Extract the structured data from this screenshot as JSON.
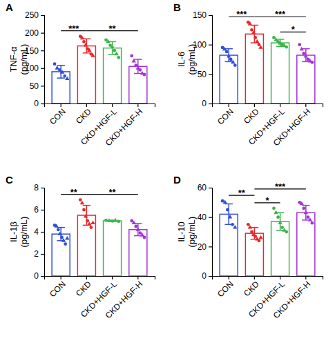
{
  "chart_data": [
    {
      "type": "bar",
      "title": "A",
      "y_label": [
        "TNF-α",
        "(pg/mL)"
      ],
      "categories": [
        "CON",
        "CKD",
        "CKD+HGF-L",
        "CKD+HGF-H"
      ],
      "values": [
        90,
        163,
        157,
        105
      ],
      "errors": [
        18,
        20,
        18,
        20
      ],
      "points": [
        [
          112,
          100,
          95,
          88,
          78,
          70
        ],
        [
          190,
          185,
          175,
          165,
          155,
          150,
          140,
          135
        ],
        [
          180,
          175,
          165,
          160,
          150,
          140,
          130
        ],
        [
          135,
          120,
          108,
          100,
          95,
          85,
          82
        ]
      ],
      "colors": [
        "#2f4fd6",
        "#e8262b",
        "#3cb44b",
        "#a335d6"
      ],
      "ylim": [
        0,
        250
      ],
      "yticks": [
        0,
        50,
        100,
        150,
        200,
        250
      ],
      "significance": [
        {
          "groups": [
            "CON",
            "CKD"
          ],
          "label": "***"
        },
        {
          "groups": [
            "CKD",
            "CKD+HGF-H"
          ],
          "label": "**"
        }
      ]
    },
    {
      "type": "bar",
      "title": "B",
      "y_label": [
        "IL-6",
        "(pg/mL)"
      ],
      "categories": [
        "CON",
        "CKD",
        "CKD+HGF-L",
        "CKD+HGF-H"
      ],
      "values": [
        82,
        118,
        103,
        82
      ],
      "errors": [
        11,
        15,
        6,
        11
      ],
      "points": [
        [
          95,
          92,
          88,
          80,
          75,
          70,
          65
        ],
        [
          138,
          135,
          125,
          120,
          112,
          105,
          100,
          95
        ],
        [
          112,
          108,
          105,
          102,
          100,
          98,
          96
        ],
        [
          100,
          92,
          85,
          80,
          75,
          72,
          70
        ]
      ],
      "colors": [
        "#2f4fd6",
        "#e8262b",
        "#3cb44b",
        "#a335d6"
      ],
      "ylim": [
        0,
        150
      ],
      "yticks": [
        0,
        50,
        100,
        150
      ],
      "significance": [
        {
          "groups": [
            "CON",
            "CKD"
          ],
          "label": "***"
        },
        {
          "groups": [
            "CKD",
            "CKD+HGF-H"
          ],
          "label": "***"
        },
        {
          "groups": [
            "CKD+HGF-L",
            "CKD+HGF-H"
          ],
          "label": "*"
        }
      ]
    },
    {
      "type": "bar",
      "title": "C",
      "y_label": [
        "IL-1β",
        "(pg/mL)"
      ],
      "categories": [
        "CON",
        "CKD",
        "CKD+HGF-L",
        "CKD+HGF-H"
      ],
      "values": [
        3.8,
        5.5,
        5.0,
        4.2
      ],
      "errors": [
        0.6,
        0.9,
        0.05,
        0.55
      ],
      "points": [
        [
          4.6,
          4.5,
          4.2,
          3.8,
          3.5,
          3.2,
          2.9,
          3.4
        ],
        [
          6.9,
          6.6,
          6.0,
          5.4,
          5.0,
          4.7,
          4.4,
          4.8
        ],
        [
          5.05,
          5.0,
          4.98,
          5.02,
          4.95
        ],
        [
          5.0,
          4.8,
          4.5,
          4.2,
          3.9,
          3.7,
          3.5
        ]
      ],
      "colors": [
        "#2f4fd6",
        "#e8262b",
        "#3cb44b",
        "#a335d6"
      ],
      "ylim": [
        0,
        8
      ],
      "yticks": [
        0,
        2,
        4,
        6,
        8
      ],
      "significance": [
        {
          "groups": [
            "CON",
            "CKD"
          ],
          "label": "**"
        },
        {
          "groups": [
            "CKD",
            "CKD+HGF-H"
          ],
          "label": "**"
        }
      ]
    },
    {
      "type": "bar",
      "title": "D",
      "y_label": [
        "IL-10",
        "(pg/mL)"
      ],
      "categories": [
        "CON",
        "CKD",
        "CKD+HGF-L",
        "CKD+HGF-H"
      ],
      "values": [
        42,
        29,
        37,
        43
      ],
      "errors": [
        7,
        4,
        6,
        5
      ],
      "points": [
        [
          51,
          50,
          45,
          40,
          35,
          33
        ],
        [
          35,
          33,
          30,
          28,
          27,
          25,
          24,
          26
        ],
        [
          46,
          43,
          40,
          36,
          33,
          31,
          30
        ],
        [
          50,
          49,
          46,
          43,
          40,
          38,
          36
        ]
      ],
      "colors": [
        "#2f4fd6",
        "#e8262b",
        "#3cb44b",
        "#a335d6"
      ],
      "ylim": [
        0,
        60
      ],
      "yticks": [
        0,
        20,
        40,
        60
      ],
      "significance": [
        {
          "groups": [
            "CON",
            "CKD"
          ],
          "label": "**"
        },
        {
          "groups": [
            "CKD",
            "CKD+HGF-L"
          ],
          "label": "*"
        },
        {
          "groups": [
            "CKD",
            "CKD+HGF-H"
          ],
          "label": "***"
        }
      ]
    }
  ]
}
